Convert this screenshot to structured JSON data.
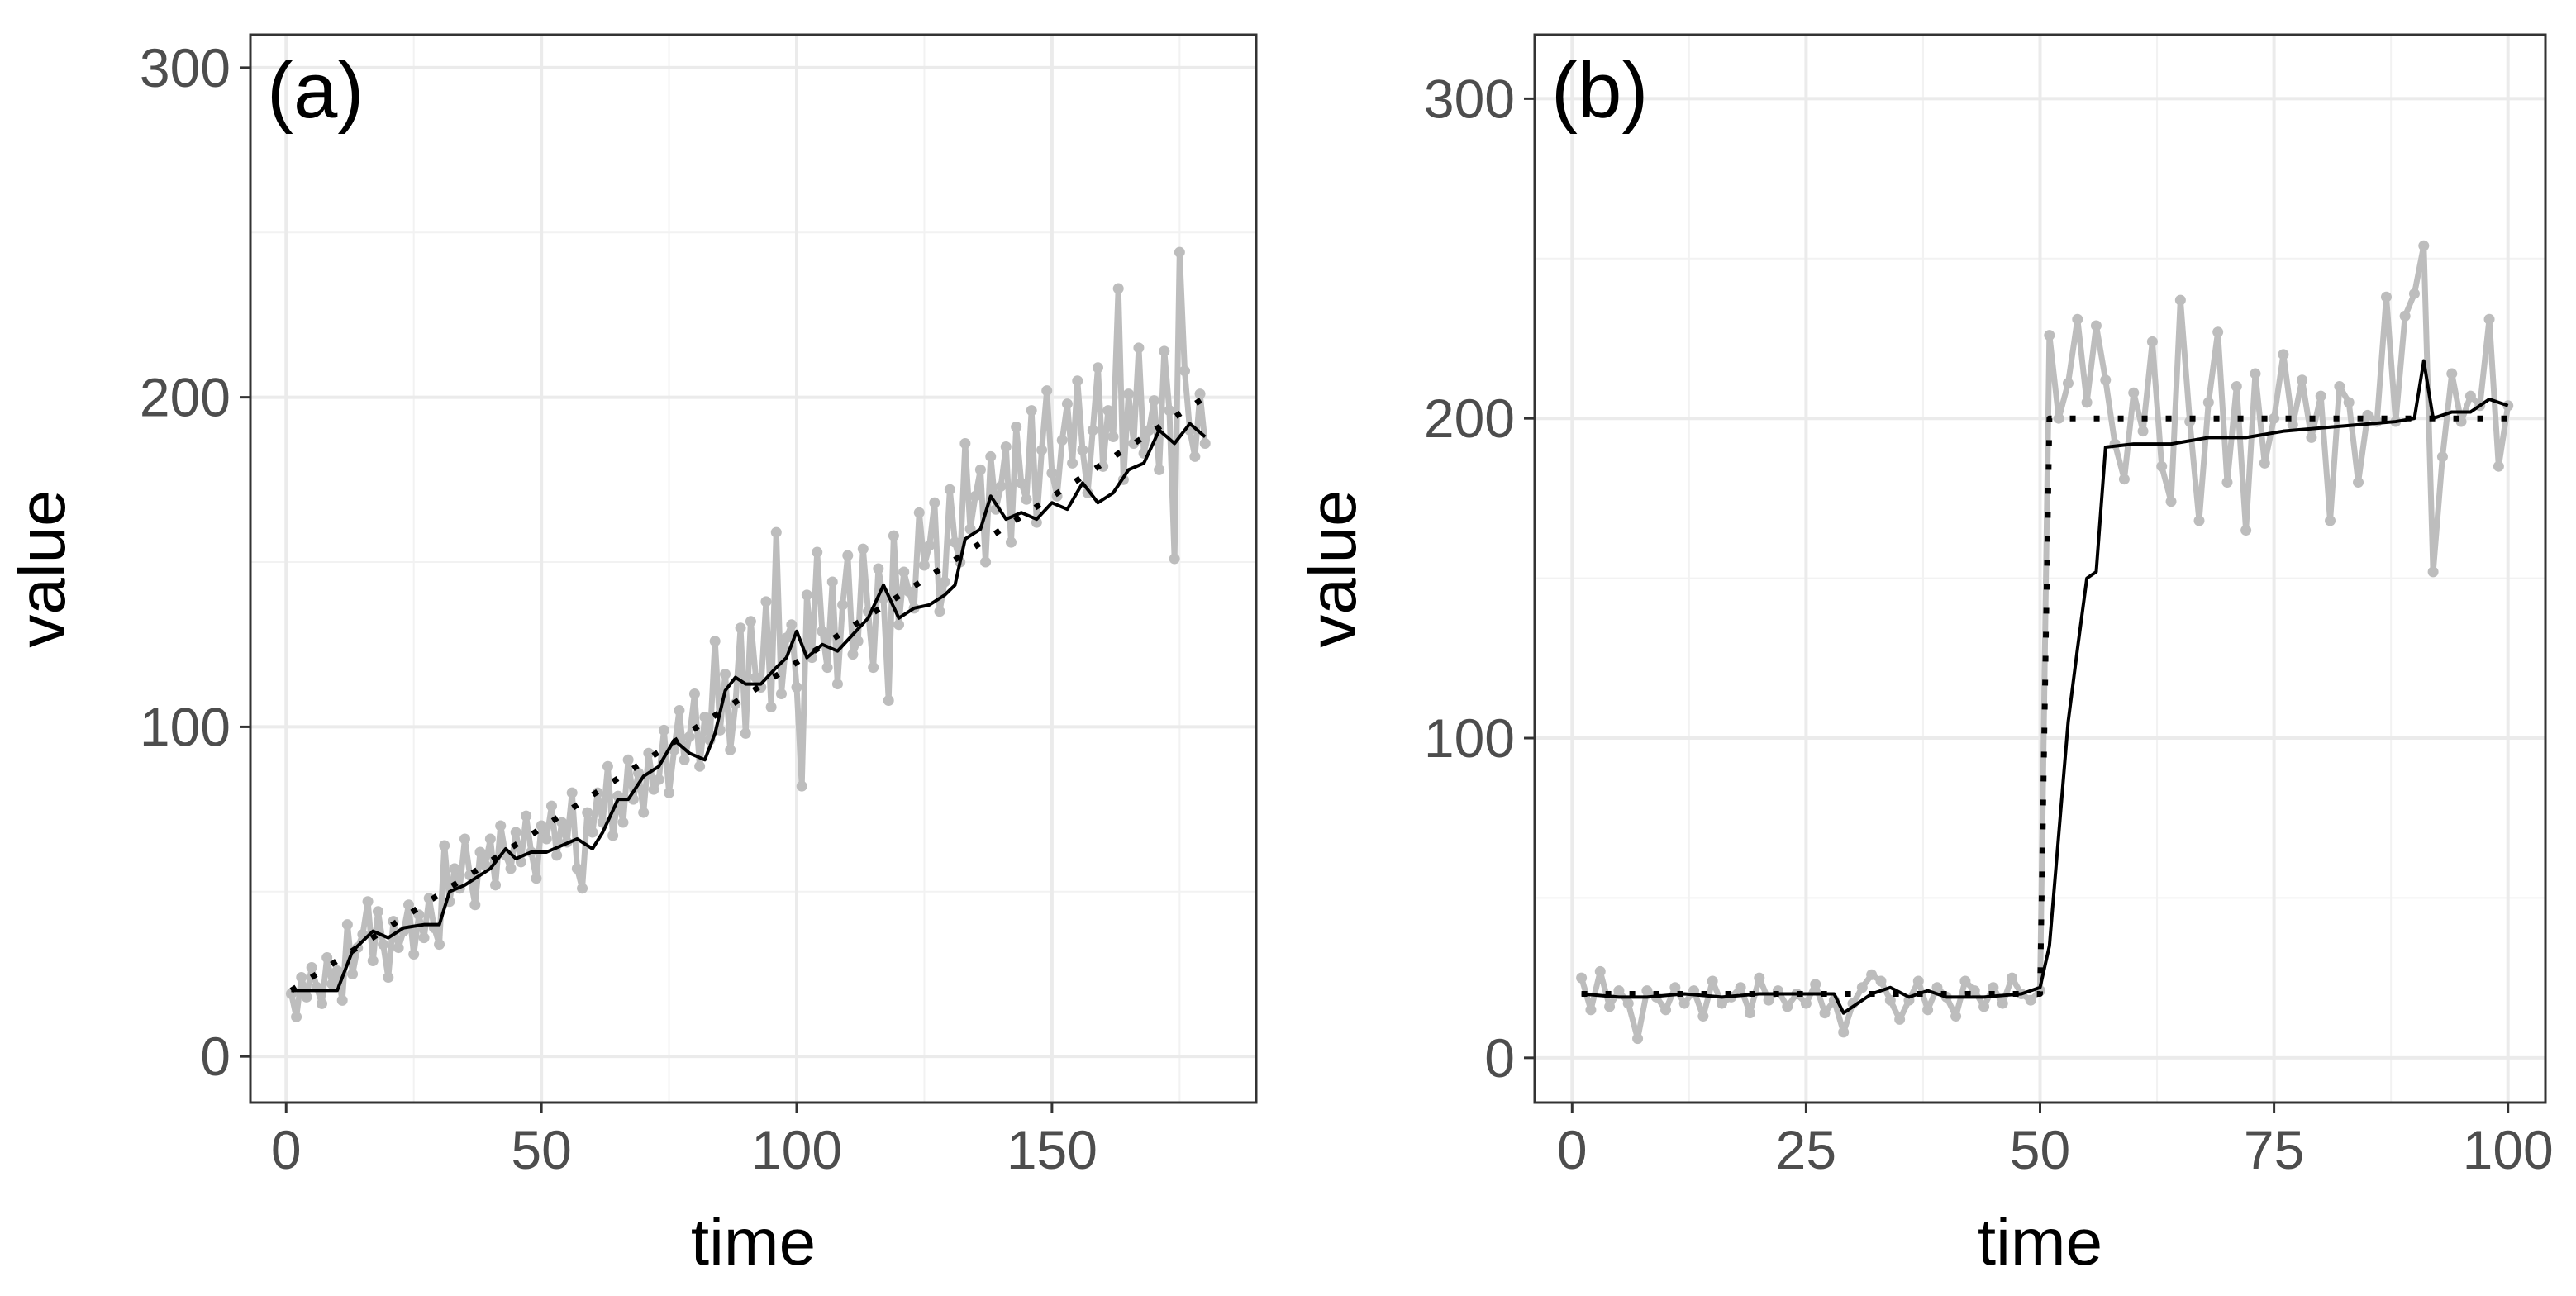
{
  "chart_data": [
    {
      "type": "line",
      "panel_label": "(a)",
      "xlabel": "time",
      "ylabel": "value",
      "xlim": [
        -7,
        190
      ],
      "ylim": [
        -14,
        310
      ],
      "xticks": [
        0,
        50,
        100,
        150
      ],
      "yticks": [
        0,
        100,
        200,
        300
      ],
      "grid": true,
      "legend": "none",
      "series": [
        {
          "style": "grey line with points",
          "color": "#bdbdbd",
          "x": [
            1,
            2,
            3,
            4,
            5,
            6,
            7,
            8,
            9,
            10,
            11,
            12,
            13,
            14,
            15,
            16,
            17,
            18,
            19,
            20,
            21,
            22,
            23,
            24,
            25,
            26,
            27,
            28,
            29,
            30,
            31,
            32,
            33,
            34,
            35,
            36,
            37,
            38,
            39,
            40,
            41,
            42,
            43,
            44,
            45,
            46,
            47,
            48,
            49,
            50,
            51,
            52,
            53,
            54,
            55,
            56,
            57,
            58,
            59,
            60,
            61,
            62,
            63,
            64,
            65,
            66,
            67,
            68,
            69,
            70,
            71,
            72,
            73,
            74,
            75,
            76,
            77,
            78,
            79,
            80,
            81,
            82,
            83,
            84,
            85,
            86,
            87,
            88,
            89,
            90,
            91,
            92,
            93,
            94,
            95,
            96,
            97,
            98,
            99,
            100,
            101,
            102,
            103,
            104,
            105,
            106,
            107,
            108,
            109,
            110,
            111,
            112,
            113,
            114,
            115,
            116,
            117,
            118,
            119,
            120,
            121,
            122,
            123,
            124,
            125,
            126,
            127,
            128,
            129,
            130,
            131,
            132,
            133,
            134,
            135,
            136,
            137,
            138,
            139,
            140,
            141,
            142,
            143,
            144,
            145,
            146,
            147,
            148,
            149,
            150,
            151,
            152,
            153,
            154,
            155,
            156,
            157,
            158,
            159,
            160,
            161,
            162,
            163,
            164,
            165,
            166,
            167,
            168,
            169,
            170,
            171,
            172,
            173,
            174,
            175,
            176,
            177,
            178,
            179,
            180
          ],
          "y": [
            19,
            12,
            24,
            18,
            27,
            21,
            16,
            30,
            22,
            26,
            17,
            40,
            25,
            33,
            37,
            47,
            29,
            44,
            34,
            24,
            41,
            33,
            38,
            46,
            31,
            43,
            36,
            48,
            39,
            34,
            64,
            47,
            57,
            51,
            66,
            55,
            46,
            62,
            58,
            66,
            52,
            70,
            61,
            57,
            68,
            59,
            73,
            62,
            54,
            70,
            66,
            76,
            61,
            71,
            65,
            80,
            57,
            51,
            74,
            68,
            80,
            71,
            88,
            67,
            79,
            71,
            90,
            78,
            86,
            74,
            92,
            81,
            84,
            99,
            80,
            93,
            105,
            90,
            97,
            110,
            88,
            103,
            96,
            126,
            99,
            116,
            93,
            107,
            130,
            98,
            132,
            115,
            112,
            138,
            106,
            159,
            110,
            127,
            131,
            112,
            82,
            140,
            121,
            153,
            129,
            118,
            144,
            113,
            137,
            152,
            122,
            126,
            154,
            135,
            118,
            148,
            139,
            108,
            158,
            131,
            147,
            141,
            136,
            165,
            149,
            155,
            168,
            135,
            144,
            172,
            156,
            150,
            186,
            160,
            170,
            178,
            150,
            182,
            166,
            173,
            185,
            156,
            191,
            174,
            169,
            196,
            162,
            184,
            202,
            177,
            170,
            187,
            198,
            180,
            205,
            184,
            171,
            190,
            209,
            179,
            196,
            188,
            233,
            175,
            201,
            186,
            215,
            183,
            190,
            199,
            178,
            214,
            196,
            151,
            244,
            208,
            190,
            182,
            201,
            186
          ]
        },
        {
          "style": "dotted black line",
          "color": "#000000",
          "x": [
            1,
            180
          ],
          "y": [
            20,
            200
          ]
        },
        {
          "style": "solid black line",
          "color": "#000000",
          "x": [
            1,
            4,
            7,
            10,
            13,
            15,
            17,
            20,
            23,
            27,
            30,
            32,
            35,
            38,
            40,
            43,
            45,
            48,
            51,
            54,
            57,
            60,
            62,
            65,
            67,
            70,
            73,
            76,
            79,
            82,
            84,
            86,
            88,
            90,
            93,
            96,
            98,
            100,
            102,
            105,
            108,
            111,
            114,
            117,
            120,
            123,
            126,
            129,
            131,
            133,
            136,
            138,
            141,
            144,
            147,
            150,
            153,
            156,
            159,
            162,
            165,
            168,
            171,
            174,
            177,
            180
          ],
          "y": [
            20,
            20,
            20,
            20,
            32,
            35,
            38,
            36,
            39,
            40,
            40,
            50,
            52,
            55,
            57,
            63,
            60,
            62,
            62,
            64,
            66,
            63,
            68,
            78,
            78,
            85,
            88,
            96,
            92,
            90,
            98,
            111,
            115,
            113,
            113,
            118,
            121,
            129,
            121,
            125,
            123,
            128,
            133,
            143,
            133,
            136,
            137,
            140,
            143,
            157,
            160,
            170,
            163,
            165,
            163,
            168,
            166,
            174,
            168,
            171,
            178,
            180,
            190,
            186,
            192,
            188
          ]
        }
      ]
    },
    {
      "type": "line",
      "panel_label": "(b)",
      "xlabel": "time",
      "ylabel": "value",
      "xlim": [
        -4,
        104
      ],
      "ylim": [
        -14,
        320
      ],
      "xticks": [
        0,
        25,
        50,
        75,
        100
      ],
      "yticks": [
        0,
        100,
        200,
        300
      ],
      "grid": true,
      "legend": "none",
      "series": [
        {
          "style": "grey line with points",
          "color": "#bdbdbd",
          "x": [
            1,
            2,
            3,
            4,
            5,
            6,
            7,
            8,
            9,
            10,
            11,
            12,
            13,
            14,
            15,
            16,
            17,
            18,
            19,
            20,
            21,
            22,
            23,
            24,
            25,
            26,
            27,
            28,
            29,
            30,
            31,
            32,
            33,
            34,
            35,
            36,
            37,
            38,
            39,
            40,
            41,
            42,
            43,
            44,
            45,
            46,
            47,
            48,
            49,
            50,
            51,
            52,
            53,
            54,
            55,
            56,
            57,
            58,
            59,
            60,
            61,
            62,
            63,
            64,
            65,
            66,
            67,
            68,
            69,
            70,
            71,
            72,
            73,
            74,
            75,
            76,
            77,
            78,
            79,
            80,
            81,
            82,
            83,
            84,
            85,
            86,
            87,
            88,
            89,
            90,
            91,
            92,
            93,
            94,
            95,
            96,
            97,
            98,
            99,
            100
          ],
          "y": [
            25,
            15,
            27,
            16,
            21,
            17,
            6,
            21,
            19,
            15,
            22,
            17,
            21,
            13,
            24,
            17,
            19,
            22,
            14,
            25,
            18,
            21,
            16,
            20,
            17,
            23,
            14,
            18,
            8,
            17,
            22,
            26,
            24,
            18,
            12,
            18,
            24,
            15,
            22,
            19,
            13,
            24,
            21,
            16,
            22,
            17,
            25,
            20,
            18,
            21,
            226,
            200,
            211,
            231,
            205,
            229,
            212,
            192,
            181,
            208,
            196,
            224,
            185,
            174,
            237,
            199,
            168,
            205,
            227,
            180,
            210,
            165,
            214,
            186,
            200,
            220,
            198,
            212,
            194,
            207,
            168,
            210,
            205,
            180,
            201,
            199,
            238,
            199,
            232,
            239,
            254,
            152,
            188,
            214,
            199,
            207,
            204,
            231,
            185,
            204
          ]
        },
        {
          "style": "dotted black line",
          "color": "#000000",
          "x": [
            1,
            50,
            50.5,
            51,
            100
          ],
          "y": [
            20,
            20,
            110,
            200,
            200
          ]
        },
        {
          "style": "solid black line",
          "color": "#000000",
          "x": [
            1,
            5,
            8,
            12,
            16,
            20,
            24,
            28,
            29,
            30,
            32,
            34,
            36,
            38,
            40,
            44,
            48,
            50,
            51,
            52,
            53,
            54,
            55,
            56,
            57,
            60,
            64,
            68,
            72,
            76,
            80,
            84,
            88,
            90,
            91,
            92,
            94,
            96,
            98,
            100
          ],
          "y": [
            20,
            19,
            19,
            20,
            19,
            20,
            20,
            20,
            14,
            16,
            20,
            22,
            19,
            21,
            19,
            19,
            20,
            22,
            35,
            70,
            105,
            128,
            150,
            152,
            191,
            192,
            192,
            194,
            194,
            196,
            197,
            198,
            199,
            200,
            218,
            200,
            202,
            202,
            206,
            204
          ]
        }
      ]
    }
  ]
}
